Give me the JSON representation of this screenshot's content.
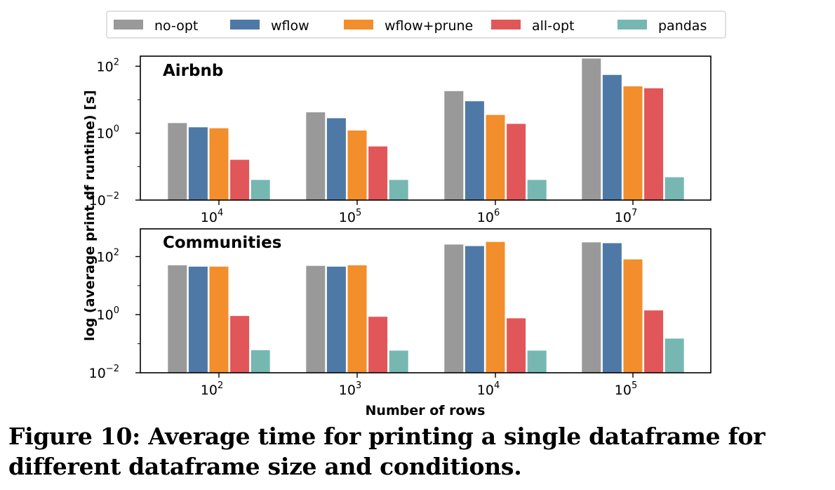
{
  "legend": [
    {
      "label": "no-opt",
      "color": "#999999"
    },
    {
      "label": "wflow",
      "color": "#4e79a7"
    },
    {
      "label": "wflow+prune",
      "color": "#f28e2b"
    },
    {
      "label": "all-opt",
      "color": "#e15759"
    },
    {
      "label": "pandas",
      "color": "#76b7b2"
    }
  ],
  "caption": "Figure 10: Average time for printing a single dataframe for different dataframe size and conditions.",
  "chart_data": [
    {
      "type": "bar",
      "title": "Airbnb",
      "xlabel": "Number of rows",
      "ylabel": "log (average print df runtime) [s]",
      "yscale": "log",
      "ylim": [
        0.01,
        200
      ],
      "yticks": [
        0.01,
        1,
        100
      ],
      "categories": [
        "10^4",
        "10^5",
        "10^6",
        "10^7"
      ],
      "series": [
        {
          "name": "no-opt",
          "values": [
            2.0,
            4.2,
            18,
            170
          ]
        },
        {
          "name": "wflow",
          "values": [
            1.5,
            2.8,
            9,
            55
          ]
        },
        {
          "name": "wflow+prune",
          "values": [
            1.4,
            1.2,
            3.5,
            25
          ]
        },
        {
          "name": "all-opt",
          "values": [
            0.16,
            0.4,
            1.9,
            22
          ]
        },
        {
          "name": "pandas",
          "values": [
            0.04,
            0.04,
            0.04,
            0.048
          ]
        }
      ]
    },
    {
      "type": "bar",
      "title": "Communities",
      "xlabel": "Number of rows",
      "ylabel": "log (average print df runtime) [s]",
      "yscale": "log",
      "ylim": [
        0.01,
        900
      ],
      "yticks": [
        0.01,
        1,
        100
      ],
      "categories": [
        "10^2",
        "10^3",
        "10^4",
        "10^5"
      ],
      "series": [
        {
          "name": "no-opt",
          "values": [
            50,
            48,
            260,
            310
          ]
        },
        {
          "name": "wflow",
          "values": [
            45,
            45,
            230,
            290
          ]
        },
        {
          "name": "wflow+prune",
          "values": [
            45,
            50,
            320,
            80
          ]
        },
        {
          "name": "all-opt",
          "values": [
            0.9,
            0.85,
            0.75,
            1.4
          ]
        },
        {
          "name": "pandas",
          "values": [
            0.06,
            0.058,
            0.058,
            0.15
          ]
        }
      ]
    }
  ]
}
